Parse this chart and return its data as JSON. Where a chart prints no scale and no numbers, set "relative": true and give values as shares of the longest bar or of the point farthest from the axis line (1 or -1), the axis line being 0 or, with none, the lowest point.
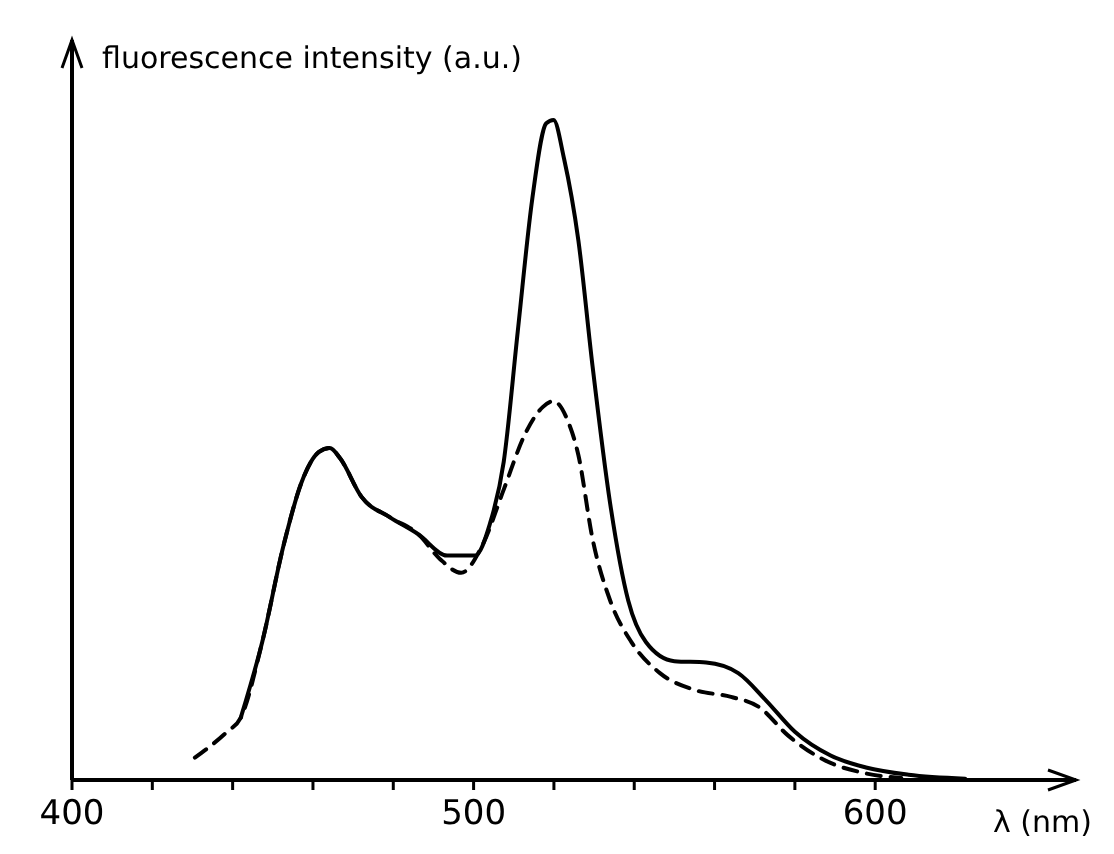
{
  "chart_data": {
    "type": "line",
    "relative": true,
    "xlabel": "λ (nm)",
    "ylabel": "fluorescence intensity (a.u.)",
    "xlim": [
      400,
      650
    ],
    "xticks": [
      400,
      {
        "value": 420,
        "label": null
      },
      {
        "value": 440,
        "label": null
      },
      {
        "value": 460,
        "label": null
      },
      {
        "value": 480,
        "label": null
      },
      500,
      {
        "value": 520,
        "label": null
      },
      {
        "value": 540,
        "label": null
      },
      {
        "value": 560,
        "label": null
      },
      {
        "value": 580,
        "label": null
      },
      600
    ],
    "grid": false,
    "marker": "none",
    "series": [
      {
        "color": "#000000",
        "line_style": "solid",
        "x": [
          442,
          447.4,
          452.7,
          457.1,
          461.5,
          464.2,
          466.8,
          472.1,
          479.2,
          486.3,
          493.4,
          500.4,
          504,
          507.5,
          511,
          514.6,
          518.1,
          519.9,
          522.5,
          526.1,
          529.6,
          534,
          538.5,
          542.9,
          550,
          557.9,
          565.9,
          572.9,
          580,
          588.9,
          597.7,
          608.3,
          622.4
        ],
        "values": [
          0.094,
          0.21,
          0.356,
          0.45,
          0.497,
          0.503,
          0.487,
          0.429,
          0.398,
          0.372,
          0.34,
          0.34,
          0.387,
          0.482,
          0.68,
          0.88,
          0.995,
          1,
          0.942,
          0.817,
          0.628,
          0.419,
          0.272,
          0.209,
          0.18,
          0.178,
          0.162,
          0.12,
          0.073,
          0.037,
          0.019,
          0.008,
          0.002
        ]
      },
      {
        "color": "#000000",
        "line_style": "dashed",
        "x": [
          430.6,
          438.6,
          442,
          447.4,
          452.7,
          457.1,
          461.5,
          464.2,
          466.8,
          472.1,
          479.2,
          486.3,
          491.6,
          496.9,
          502.2,
          507.5,
          512.8,
          517.2,
          519.9,
          523.4,
          526.1,
          529.6,
          534,
          539.3,
          546.4,
          555.3,
          564.1,
          571.2,
          578.2,
          587.1,
          597.7,
          606.5
        ],
        "values": [
          0.034,
          0.073,
          0.094,
          0.21,
          0.356,
          0.45,
          0.497,
          0.503,
          0.487,
          0.429,
          0.398,
          0.372,
          0.335,
          0.314,
          0.356,
          0.44,
          0.524,
          0.565,
          0.574,
          0.545,
          0.492,
          0.366,
          0.272,
          0.209,
          0.162,
          0.136,
          0.126,
          0.11,
          0.068,
          0.031,
          0.01,
          0.003
        ]
      }
    ]
  }
}
